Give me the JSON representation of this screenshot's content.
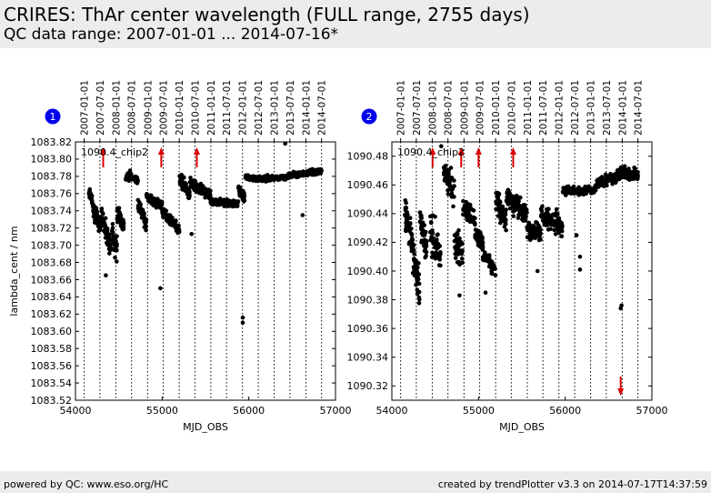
{
  "header": {
    "title": "CRIRES: ThAr center wavelength (FULL range, 2755 days)",
    "subtitle": "QC data range: 2007-01-01 ... 2014-07-16*"
  },
  "footer": {
    "left": "powered by QC: www.eso.org/HC",
    "right": "created by trendPlotter v3.3 on 2014-07-17T14:37:59"
  },
  "colors": {
    "background": "#ececec",
    "points": "#000000",
    "markers": "#dd0000",
    "badge": "#0000ee"
  },
  "chart_data": [
    {
      "type": "scatter",
      "panel_number": "1",
      "annotation": "1090.4_chip2",
      "xlabel": "MJD_OBS",
      "ylabel": "lambda_cent / nm",
      "xlim": [
        54000,
        57000
      ],
      "ylim": [
        1083.52,
        1083.82
      ],
      "xticks": [
        54000,
        55000,
        56000,
        57000
      ],
      "yticks": [
        1083.52,
        1083.54,
        1083.56,
        1083.58,
        1083.6,
        1083.62,
        1083.64,
        1083.66,
        1083.68,
        1083.7,
        1083.72,
        1083.74,
        1083.76,
        1083.78,
        1083.8,
        1083.82
      ],
      "ytick_labels": [
        "1083.52",
        "1083.54",
        "1083.56",
        "1083.58",
        "1083.60",
        "1083.62",
        "1083.64",
        "1083.66",
        "1083.68",
        "1083.70",
        "1083.72",
        "1083.74",
        "1083.76",
        "1083.78",
        "1083.80",
        "1083.82"
      ],
      "date_axis": {
        "mjd": [
          54101,
          54282,
          54466,
          54647,
          54832,
          55013,
          55197,
          55378,
          55562,
          55743,
          55927,
          56109,
          56293,
          56474,
          56658,
          56839
        ],
        "labels": [
          "2007-01-01",
          "2007-07-01",
          "2008-01-01",
          "2008-07-01",
          "2009-01-01",
          "2009-07-01",
          "2010-01-01",
          "2010-07-01",
          "2011-01-01",
          "2011-07-01",
          "2012-01-01",
          "2012-07-01",
          "2013-01-01",
          "2013-07-01",
          "2014-01-01",
          "2014-07-01"
        ]
      },
      "out_of_range_markers": [
        {
          "x": 54320,
          "direction": "up"
        },
        {
          "x": 54990,
          "direction": "up"
        },
        {
          "x": 55400,
          "direction": "up"
        }
      ],
      "segments": [
        {
          "x0": 54150,
          "x1": 54200,
          "y0": 1083.762,
          "y1": 1083.752,
          "s": 0.006,
          "n": 25
        },
        {
          "x0": 54200,
          "x1": 54290,
          "y0": 1083.742,
          "y1": 1083.722,
          "s": 0.01,
          "n": 70
        },
        {
          "x0": 54300,
          "x1": 54400,
          "y0": 1083.735,
          "y1": 1083.7,
          "s": 0.012,
          "n": 70
        },
        {
          "x0": 54420,
          "x1": 54480,
          "y0": 1083.712,
          "y1": 1083.695,
          "s": 0.016,
          "n": 35
        },
        {
          "x0": 54480,
          "x1": 54560,
          "y0": 1083.738,
          "y1": 1083.722,
          "s": 0.01,
          "n": 45
        },
        {
          "x0": 54580,
          "x1": 54720,
          "y0": 1083.782,
          "y1": 1083.775,
          "s": 0.006,
          "n": 60
        },
        {
          "x0": 54720,
          "x1": 54820,
          "y0": 1083.745,
          "y1": 1083.728,
          "s": 0.01,
          "n": 45
        },
        {
          "x0": 54820,
          "x1": 55000,
          "y0": 1083.757,
          "y1": 1083.745,
          "s": 0.006,
          "n": 80
        },
        {
          "x0": 55000,
          "x1": 55200,
          "y0": 1083.738,
          "y1": 1083.718,
          "s": 0.006,
          "n": 110
        },
        {
          "x0": 55200,
          "x1": 55320,
          "y0": 1083.778,
          "y1": 1083.758,
          "s": 0.008,
          "n": 70
        },
        {
          "x0": 55320,
          "x1": 55560,
          "y0": 1083.772,
          "y1": 1083.758,
          "s": 0.006,
          "n": 130
        },
        {
          "x0": 55560,
          "x1": 55880,
          "y0": 1083.751,
          "y1": 1083.748,
          "s": 0.004,
          "n": 160
        },
        {
          "x0": 55880,
          "x1": 55950,
          "y0": 1083.766,
          "y1": 1083.754,
          "s": 0.008,
          "n": 45
        },
        {
          "x0": 55960,
          "x1": 56120,
          "y0": 1083.779,
          "y1": 1083.777,
          "s": 0.003,
          "n": 90
        },
        {
          "x0": 56120,
          "x1": 56450,
          "y0": 1083.777,
          "y1": 1083.779,
          "s": 0.003,
          "n": 150
        },
        {
          "x0": 56450,
          "x1": 56840,
          "y0": 1083.781,
          "y1": 1083.786,
          "s": 0.003,
          "n": 220
        }
      ],
      "outliers": [
        [
          54350,
          1083.665
        ],
        [
          54980,
          1083.65
        ],
        [
          55930,
          1083.616
        ],
        [
          55930,
          1083.61
        ],
        [
          56420,
          1083.818
        ],
        [
          56620,
          1083.735
        ],
        [
          55340,
          1083.713
        ]
      ]
    },
    {
      "type": "scatter",
      "panel_number": "2",
      "annotation": "1090.4_chip2",
      "xlabel": "MJD_OBS",
      "ylabel": "",
      "xlim": [
        54000,
        57000
      ],
      "ylim": [
        1090.31,
        1090.49
      ],
      "xticks": [
        54000,
        55000,
        56000,
        57000
      ],
      "yticks": [
        1090.32,
        1090.34,
        1090.36,
        1090.38,
        1090.4,
        1090.42,
        1090.44,
        1090.46,
        1090.48
      ],
      "ytick_labels": [
        "1090.32",
        "1090.34",
        "1090.36",
        "1090.38",
        "1090.40",
        "1090.42",
        "1090.44",
        "1090.46",
        "1090.48"
      ],
      "date_axis": {
        "mjd": [
          54101,
          54282,
          54466,
          54647,
          54832,
          55013,
          55197,
          55378,
          55562,
          55743,
          55927,
          56109,
          56293,
          56474,
          56658,
          56839
        ],
        "labels": [
          "2007-01-01",
          "2007-07-01",
          "2008-01-01",
          "2008-07-01",
          "2009-01-01",
          "2009-07-01",
          "2010-01-01",
          "2010-07-01",
          "2011-01-01",
          "2011-07-01",
          "2012-01-01",
          "2012-07-01",
          "2013-01-01",
          "2013-07-01",
          "2014-01-01",
          "2014-07-01"
        ]
      },
      "out_of_range_markers": [
        {
          "x": 54470,
          "direction": "up"
        },
        {
          "x": 54800,
          "direction": "up"
        },
        {
          "x": 55000,
          "direction": "up"
        },
        {
          "x": 55400,
          "direction": "up"
        },
        {
          "x": 56640,
          "direction": "down"
        }
      ],
      "segments": [
        {
          "x0": 54150,
          "x1": 54240,
          "y0": 1090.44,
          "y1": 1090.42,
          "s": 0.012,
          "n": 50
        },
        {
          "x0": 54240,
          "x1": 54320,
          "y0": 1090.41,
          "y1": 1090.385,
          "s": 0.015,
          "n": 55
        },
        {
          "x0": 54320,
          "x1": 54400,
          "y0": 1090.435,
          "y1": 1090.415,
          "s": 0.012,
          "n": 40
        },
        {
          "x0": 54440,
          "x1": 54560,
          "y0": 1090.43,
          "y1": 1090.41,
          "s": 0.014,
          "n": 55
        },
        {
          "x0": 54600,
          "x1": 54720,
          "y0": 1090.468,
          "y1": 1090.455,
          "s": 0.01,
          "n": 55
        },
        {
          "x0": 54720,
          "x1": 54820,
          "y0": 1090.42,
          "y1": 1090.415,
          "s": 0.012,
          "n": 40
        },
        {
          "x0": 54820,
          "x1": 54960,
          "y0": 1090.445,
          "y1": 1090.435,
          "s": 0.008,
          "n": 60
        },
        {
          "x0": 54960,
          "x1": 55050,
          "y0": 1090.425,
          "y1": 1090.42,
          "s": 0.007,
          "n": 50
        },
        {
          "x0": 55050,
          "x1": 55200,
          "y0": 1090.412,
          "y1": 1090.4,
          "s": 0.005,
          "n": 50
        },
        {
          "x0": 55200,
          "x1": 55320,
          "y0": 1090.452,
          "y1": 1090.432,
          "s": 0.01,
          "n": 60
        },
        {
          "x0": 55320,
          "x1": 55560,
          "y0": 1090.452,
          "y1": 1090.44,
          "s": 0.008,
          "n": 120
        },
        {
          "x0": 55560,
          "x1": 55720,
          "y0": 1090.428,
          "y1": 1090.426,
          "s": 0.006,
          "n": 80
        },
        {
          "x0": 55720,
          "x1": 55970,
          "y0": 1090.44,
          "y1": 1090.43,
          "s": 0.008,
          "n": 100
        },
        {
          "x0": 55970,
          "x1": 56350,
          "y0": 1090.456,
          "y1": 1090.456,
          "s": 0.003,
          "n": 160
        },
        {
          "x0": 56350,
          "x1": 56600,
          "y0": 1090.46,
          "y1": 1090.466,
          "s": 0.004,
          "n": 110
        },
        {
          "x0": 56600,
          "x1": 56840,
          "y0": 1090.468,
          "y1": 1090.467,
          "s": 0.004,
          "n": 140
        }
      ],
      "outliers": [
        [
          54570,
          1090.487
        ],
        [
          54780,
          1090.383
        ],
        [
          55080,
          1090.385
        ],
        [
          56650,
          1090.376
        ],
        [
          56640,
          1090.374
        ],
        [
          56170,
          1090.41
        ],
        [
          56170,
          1090.401
        ],
        [
          55680,
          1090.4
        ],
        [
          56130,
          1090.425
        ]
      ]
    }
  ]
}
